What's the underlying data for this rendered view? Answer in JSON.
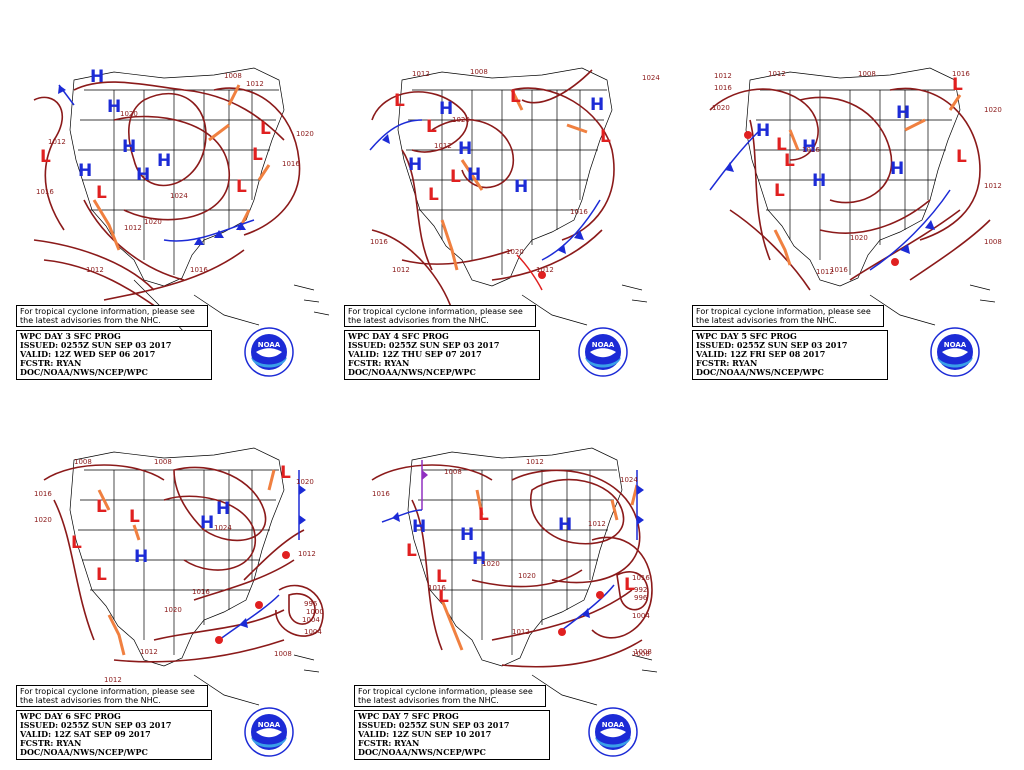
{
  "note": {
    "line1": "For tropical cyclone information, please see",
    "line2": "the latest advisories from the NHC."
  },
  "logo_text": "NOAA",
  "panels": [
    {
      "id": "day3",
      "title": "WPC DAY 3 SFC PROG",
      "issued": "ISSUED: 0255Z SUN SEP 03 2017",
      "valid": "VALID: 12Z WED SEP 06 2017",
      "fcstr": "FCSTR: RYAN",
      "org": "DOC/NOAA/NWS/NCEP/WPC",
      "isobar_labels": [
        "1008",
        "1012",
        "1020",
        "1012",
        "1016",
        "1020",
        "1024",
        "1016",
        "1020",
        "1012",
        "1012",
        "1016"
      ],
      "highs": 5,
      "lows": 5
    },
    {
      "id": "day4",
      "title": "WPC DAY 4 SFC PROG",
      "issued": "ISSUED: 0255Z SUN SEP 03 2017",
      "valid": "VALID: 12Z THU SEP 07 2017",
      "fcstr": "FCSTR: RYAN",
      "org": "DOC/NOAA/NWS/NCEP/WPC",
      "isobar_labels": [
        "1012",
        "1008",
        "1020",
        "1024",
        "1012",
        "1016",
        "1012",
        "1016",
        "1020",
        "1012"
      ],
      "highs": 5,
      "lows": 6
    },
    {
      "id": "day5",
      "title": "WPC DAY 5 SFC PROG",
      "issued": "ISSUED: 0255Z SUN SEP 03 2017",
      "valid": "VALID: 12Z FRI SEP 08 2017",
      "fcstr": "FCSTR: RYAN",
      "org": "DOC/NOAA/NWS/NCEP/WPC",
      "isobar_labels": [
        "1012",
        "1012",
        "1016",
        "1020",
        "1008",
        "1016",
        "1020",
        "1016",
        "1020",
        "1012",
        "1008",
        "1016",
        "1012"
      ],
      "highs": 5,
      "lows": 5
    },
    {
      "id": "day6",
      "title": "WPC DAY 6 SFC PROG",
      "issued": "ISSUED: 0255Z SUN SEP 03 2017",
      "valid": "VALID: 12Z SAT SEP 09 2017",
      "fcstr": "FCSTR: RYAN",
      "org": "DOC/NOAA/NWS/NCEP/WPC",
      "isobar_labels": [
        "1008",
        "1016",
        "1020",
        "1008",
        "1020",
        "1024",
        "1012",
        "1016",
        "1020",
        "1012",
        "1004",
        "1008",
        "1012",
        "996",
        "1000",
        "1004"
      ],
      "highs": 3,
      "lows": 5
    },
    {
      "id": "day7",
      "title": "WPC DAY 7 SFC PROG",
      "issued": "ISSUED: 0255Z SUN SEP 03 2017",
      "valid": "VALID: 12Z SUN SEP 10 2017",
      "fcstr": "FCSTR: RYAN",
      "org": "DOC/NOAA/NWS/NCEP/WPC",
      "isobar_labels": [
        "1012",
        "1008",
        "1016",
        "1012",
        "1020",
        "1024",
        "1020",
        "1016",
        "1008",
        "1012",
        "1016",
        "992",
        "996",
        "1004",
        "1008"
      ],
      "highs": 4,
      "lows": 5
    }
  ],
  "colors": {
    "isobar": "#8b1a1a",
    "high": "#1c2bd6",
    "low": "#e02020",
    "trough": "#f08040",
    "cold_front": "#1c2bd6",
    "warm_front": "#e02020",
    "occluded": "#9030c0",
    "basemap": "#000000"
  }
}
